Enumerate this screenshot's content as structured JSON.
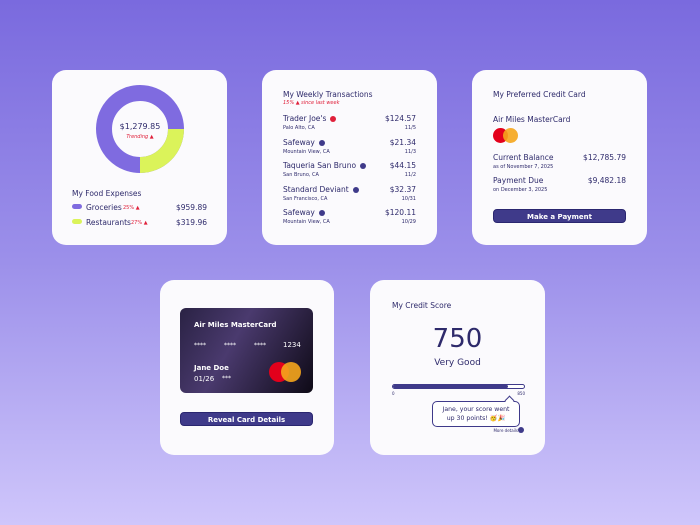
{
  "food": {
    "title": "My Food Expenses",
    "total": "$1,279.85",
    "trend": "Trending ▲",
    "items": [
      {
        "label": "Groceries",
        "pct": "25% ▲",
        "amount": "$959.89",
        "color": "#7f6be0",
        "share": 75
      },
      {
        "label": "Restaurants",
        "pct": "27% ▲",
        "amount": "$319.96",
        "color": "#dbf35a",
        "share": 25
      }
    ]
  },
  "weekly": {
    "title": "My Weekly Transactions",
    "subtitle": "15% ▲ since last week",
    "items": [
      {
        "name": "Trader Joe's",
        "location": "Palo Alto, CA",
        "amount": "$124.57",
        "date": "11/5",
        "icon": "alert-icon",
        "color": "#e0203a"
      },
      {
        "name": "Safeway",
        "location": "Mountain View, CA",
        "amount": "$21.34",
        "date": "11/3",
        "icon": "info-icon",
        "color": "#3f3a8a"
      },
      {
        "name": "Taqueria San Bruno",
        "location": "San Bruno, CA",
        "amount": "$44.15",
        "date": "11/2",
        "icon": "info-icon",
        "color": "#3f3a8a"
      },
      {
        "name": "Standard Deviant",
        "location": "San Francisco, CA",
        "amount": "$32.37",
        "date": "10/31",
        "icon": "info-icon",
        "color": "#3f3a8a"
      },
      {
        "name": "Safeway",
        "location": "Mountain View, CA",
        "amount": "$120.11",
        "date": "10/29",
        "icon": "info-icon",
        "color": "#3f3a8a"
      }
    ]
  },
  "preferred": {
    "title": "My Preferred Credit Card",
    "card_name": "Air Miles MasterCard",
    "balance_label": "Current Balance",
    "balance_date": "as of November 7, 2025",
    "balance": "$12,785.79",
    "due_label": "Payment Due",
    "due_date": "on December 3, 2025",
    "due": "$9,482.18",
    "button": "Make a Payment"
  },
  "card": {
    "name": "Air Miles MasterCard",
    "mask1": "****",
    "mask2": "****",
    "mask3": "****",
    "last4": "1234",
    "holder": "Jane Doe",
    "expiry": "01/26",
    "cvv": "***",
    "button": "Reveal Card Details"
  },
  "score": {
    "title": "My Credit Score",
    "value": "750",
    "rating": "Very Good",
    "min": "0",
    "max": "850",
    "fill_fraction": 0.88,
    "message": "Jane, your score went up 30 points! 🥳🎉",
    "more": "More details"
  }
}
